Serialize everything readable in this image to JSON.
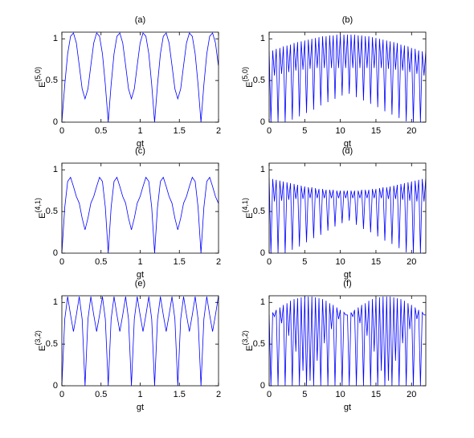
{
  "chart_data": [
    {
      "type": "line",
      "title": "(a)",
      "xlabel": "gt",
      "ylabel": "E",
      "ylabel_sup": "(5,0)",
      "xlim": [
        0,
        2
      ],
      "xticks": [
        0,
        0.5,
        1,
        1.5,
        2
      ],
      "ylim": [
        0,
        1.08
      ],
      "yticks": [
        0,
        0.5,
        1
      ],
      "x": [
        0,
        0.037,
        0.074,
        0.111,
        0.148,
        0.185,
        0.222,
        0.259,
        0.296,
        0.333,
        0.37,
        0.407,
        0.444,
        0.481,
        0.518,
        0.555,
        0.592,
        0.629,
        0.666,
        0.703,
        0.74,
        0.777,
        0.814,
        0.851,
        0.888,
        0.925,
        0.962,
        0.999,
        1.036,
        1.073,
        1.11,
        1.147,
        1.184,
        1.221,
        1.258,
        1.295,
        1.332,
        1.369,
        1.406,
        1.443,
        1.48,
        1.517,
        1.554,
        1.591,
        1.628,
        1.665,
        1.702,
        1.739,
        1.776,
        1.813,
        1.85,
        1.887,
        1.924,
        1.961,
        1.998
      ],
      "series": [
        {
          "color": "#0000ff",
          "values": [
            0,
            0.45,
            0.82,
            1.03,
            1.07,
            0.95,
            0.68,
            0.4,
            0.28,
            0.4,
            0.68,
            0.95,
            1.07,
            1.03,
            0.82,
            0.45,
            0,
            0.45,
            0.82,
            1.03,
            1.07,
            0.95,
            0.68,
            0.4,
            0.28,
            0.4,
            0.68,
            0.95,
            1.07,
            1.03,
            0.82,
            0.45,
            0,
            0.45,
            0.82,
            1.03,
            1.07,
            0.95,
            0.68,
            0.4,
            0.28,
            0.4,
            0.68,
            0.95,
            1.07,
            1.03,
            0.82,
            0.45,
            0,
            0.45,
            0.82,
            1.03,
            1.07,
            0.95,
            0.68
          ]
        }
      ]
    },
    {
      "type": "line",
      "title": "(b)",
      "xlabel": "gt",
      "ylabel": "E",
      "ylabel_sup": "(5,0)",
      "xlim": [
        0,
        22
      ],
      "xticks": [
        0,
        5,
        10,
        15,
        20
      ],
      "ylim": [
        0,
        1.08
      ],
      "yticks": [
        0,
        0.5,
        1
      ],
      "x": [
        0,
        0.25,
        0.5,
        0.75,
        1,
        1.25,
        1.5,
        1.75,
        2,
        2.25,
        2.5,
        2.75,
        3,
        3.25,
        3.5,
        3.75,
        4,
        4.25,
        4.5,
        4.75,
        5,
        5.25,
        5.5,
        5.75,
        6,
        6.25,
        6.5,
        6.75,
        7,
        7.25,
        7.5,
        7.75,
        8,
        8.25,
        8.5,
        8.75,
        9,
        9.25,
        9.5,
        9.75,
        10,
        10.25,
        10.5,
        10.75,
        11,
        11.25,
        11.5,
        11.75,
        12,
        12.25,
        12.5,
        12.75,
        13,
        13.25,
        13.5,
        13.75,
        14,
        14.25,
        14.5,
        14.75,
        15,
        15.25,
        15.5,
        15.75,
        16,
        16.25,
        16.5,
        16.75,
        17,
        17.25,
        17.5,
        17.75,
        18,
        18.25,
        18.5,
        18.75,
        19,
        19.25,
        19.5,
        19.75,
        20,
        20.25,
        20.5,
        20.75,
        21,
        21.25,
        21.5,
        21.75,
        22
      ],
      "series": [
        {
          "color": "#0000ff",
          "values": [
            0.85,
            0,
            0.86,
            0.56,
            0.88,
            0,
            0.89,
            0.58,
            0.91,
            0,
            0.92,
            0.6,
            0.93,
            0.03,
            0.95,
            0.62,
            0.96,
            0.07,
            0.97,
            0.63,
            0.98,
            0.11,
            0.99,
            0.64,
            1.0,
            0.15,
            1.01,
            0.65,
            1.02,
            0.2,
            1.03,
            0.65,
            1.03,
            0.24,
            1.04,
            0.65,
            1.04,
            0.28,
            1.05,
            0.65,
            1.05,
            0.32,
            1.05,
            0.65,
            1.05,
            0.34,
            1.05,
            0.65,
            1.05,
            0.3,
            1.04,
            0.65,
            1.04,
            0.26,
            1.03,
            0.65,
            1.03,
            0.22,
            1.02,
            0.65,
            1.01,
            0.18,
            1.0,
            0.65,
            0.99,
            0.13,
            0.98,
            0.64,
            0.97,
            0.09,
            0.96,
            0.63,
            0.95,
            0.05,
            0.93,
            0.62,
            0.92,
            0.01,
            0.91,
            0.6,
            0.89,
            0,
            0.88,
            0.58,
            0.86,
            0,
            0.85,
            0.56,
            0.85
          ]
        }
      ]
    },
    {
      "type": "line",
      "title": "(c)",
      "xlabel": "gt",
      "ylabel": "E",
      "ylabel_sup": "(4,1)",
      "xlim": [
        0,
        2
      ],
      "xticks": [
        0,
        0.5,
        1,
        1.5,
        2
      ],
      "ylim": [
        0,
        1.08
      ],
      "yticks": [
        0,
        0.5,
        1
      ],
      "x": [
        0,
        0.037,
        0.074,
        0.111,
        0.148,
        0.185,
        0.222,
        0.259,
        0.296,
        0.333,
        0.37,
        0.407,
        0.444,
        0.481,
        0.518,
        0.555,
        0.592,
        0.629,
        0.666,
        0.703,
        0.74,
        0.777,
        0.814,
        0.851,
        0.888,
        0.925,
        0.962,
        0.999,
        1.036,
        1.073,
        1.11,
        1.147,
        1.184,
        1.221,
        1.258,
        1.295,
        1.332,
        1.369,
        1.406,
        1.443,
        1.48,
        1.517,
        1.554,
        1.591,
        1.628,
        1.665,
        1.702,
        1.739,
        1.776,
        1.813,
        1.85,
        1.887,
        1.924,
        1.961,
        1.998
      ],
      "series": [
        {
          "color": "#0000ff",
          "values": [
            0,
            0.55,
            0.86,
            0.91,
            0.8,
            0.68,
            0.6,
            0.42,
            0.28,
            0.42,
            0.6,
            0.68,
            0.8,
            0.91,
            0.86,
            0.55,
            0,
            0.55,
            0.86,
            0.91,
            0.8,
            0.68,
            0.6,
            0.42,
            0.28,
            0.42,
            0.6,
            0.68,
            0.8,
            0.91,
            0.86,
            0.55,
            0,
            0.55,
            0.86,
            0.91,
            0.8,
            0.68,
            0.6,
            0.42,
            0.28,
            0.42,
            0.6,
            0.68,
            0.8,
            0.91,
            0.86,
            0.55,
            0,
            0.55,
            0.86,
            0.91,
            0.8,
            0.68,
            0.6
          ]
        }
      ]
    },
    {
      "type": "line",
      "title": "(d)",
      "xlabel": "gt",
      "ylabel": "E",
      "ylabel_sup": "(4,1)",
      "xlim": [
        0,
        22
      ],
      "xticks": [
        0,
        5,
        10,
        15,
        20
      ],
      "ylim": [
        0,
        1.08
      ],
      "yticks": [
        0,
        0.5,
        1
      ],
      "x": [
        0,
        0.25,
        0.5,
        0.75,
        1,
        1.25,
        1.5,
        1.75,
        2,
        2.25,
        2.5,
        2.75,
        3,
        3.25,
        3.5,
        3.75,
        4,
        4.25,
        4.5,
        4.75,
        5,
        5.25,
        5.5,
        5.75,
        6,
        6.25,
        6.5,
        6.75,
        7,
        7.25,
        7.5,
        7.75,
        8,
        8.25,
        8.5,
        8.75,
        9,
        9.25,
        9.5,
        9.75,
        10,
        10.25,
        10.5,
        10.75,
        11,
        11.25,
        11.5,
        11.75,
        12,
        12.25,
        12.5,
        12.75,
        13,
        13.25,
        13.5,
        13.75,
        14,
        14.25,
        14.5,
        14.75,
        15,
        15.25,
        15.5,
        15.75,
        16,
        16.25,
        16.5,
        16.75,
        17,
        17.25,
        17.5,
        17.75,
        18,
        18.25,
        18.5,
        18.75,
        19,
        19.25,
        19.5,
        19.75,
        20,
        20.25,
        20.5,
        20.75,
        21,
        21.25,
        21.5,
        21.75,
        22
      ],
      "series": [
        {
          "color": "#0000ff",
          "values": [
            0.9,
            0,
            0.89,
            0.62,
            0.88,
            0,
            0.87,
            0.63,
            0.86,
            0,
            0.85,
            0.64,
            0.84,
            0.04,
            0.83,
            0.65,
            0.82,
            0.08,
            0.81,
            0.65,
            0.8,
            0.13,
            0.79,
            0.66,
            0.79,
            0.18,
            0.78,
            0.66,
            0.77,
            0.22,
            0.77,
            0.66,
            0.76,
            0.27,
            0.76,
            0.66,
            0.76,
            0.32,
            0.75,
            0.66,
            0.75,
            0.36,
            0.75,
            0.66,
            0.75,
            0.39,
            0.75,
            0.66,
            0.75,
            0.34,
            0.75,
            0.66,
            0.76,
            0.29,
            0.76,
            0.66,
            0.76,
            0.25,
            0.77,
            0.66,
            0.77,
            0.2,
            0.78,
            0.66,
            0.79,
            0.15,
            0.79,
            0.65,
            0.8,
            0.11,
            0.81,
            0.65,
            0.82,
            0.06,
            0.83,
            0.64,
            0.84,
            0.01,
            0.85,
            0.63,
            0.86,
            0,
            0.87,
            0.62,
            0.88,
            0,
            0.89,
            0.62,
            0.9
          ]
        }
      ]
    },
    {
      "type": "line",
      "title": "(e)",
      "xlabel": "gt",
      "ylabel": "E",
      "ylabel_sup": "(3,2)",
      "xlim": [
        0,
        2
      ],
      "xticks": [
        0,
        0.5,
        1,
        1.5,
        2
      ],
      "ylim": [
        0,
        1.08
      ],
      "yticks": [
        0,
        0.5,
        1
      ],
      "x": [
        0,
        0.037,
        0.074,
        0.111,
        0.148,
        0.185,
        0.222,
        0.259,
        0.296,
        0.333,
        0.37,
        0.407,
        0.444,
        0.481,
        0.518,
        0.555,
        0.592,
        0.629,
        0.666,
        0.703,
        0.74,
        0.777,
        0.814,
        0.851,
        0.888,
        0.925,
        0.962,
        0.999,
        1.036,
        1.073,
        1.11,
        1.147,
        1.184,
        1.221,
        1.258,
        1.295,
        1.332,
        1.369,
        1.406,
        1.443,
        1.48,
        1.517,
        1.554,
        1.591,
        1.628,
        1.665,
        1.702,
        1.739,
        1.776,
        1.813,
        1.85,
        1.887,
        1.924,
        1.961,
        1.998
      ],
      "series": [
        {
          "color": "#0000ff",
          "values": [
            0,
            0.8,
            1.07,
            0.85,
            0.65,
            0.85,
            1.07,
            0.8,
            0,
            0.8,
            1.07,
            0.85,
            0.65,
            0.85,
            1.07,
            0.8,
            0,
            0.8,
            1.07,
            0.85,
            0.65,
            0.85,
            1.07,
            0.8,
            0,
            0.8,
            1.07,
            0.85,
            0.65,
            0.85,
            1.07,
            0.8,
            0,
            0.8,
            1.07,
            0.85,
            0.65,
            0.85,
            1.07,
            0.8,
            0,
            0.8,
            1.07,
            0.85,
            0.65,
            0.85,
            1.07,
            0.8,
            0,
            0.8,
            1.07,
            0.85,
            0.65,
            0.85,
            1.07
          ]
        }
      ]
    },
    {
      "type": "line",
      "title": "(f)",
      "xlabel": "gt",
      "ylabel": "E",
      "ylabel_sup": "(3,2)",
      "xlim": [
        0,
        22
      ],
      "xticks": [
        0,
        5,
        10,
        15,
        20
      ],
      "ylim": [
        0,
        1.08
      ],
      "yticks": [
        0,
        0.5,
        1
      ],
      "x": [
        0,
        0.25,
        0.5,
        0.75,
        1,
        1.25,
        1.5,
        1.75,
        2,
        2.25,
        2.5,
        2.75,
        3,
        3.25,
        3.5,
        3.75,
        4,
        4.25,
        4.5,
        4.75,
        5,
        5.25,
        5.5,
        5.75,
        6,
        6.25,
        6.5,
        6.75,
        7,
        7.25,
        7.5,
        7.75,
        8,
        8.25,
        8.5,
        8.75,
        9,
        9.25,
        9.5,
        9.75,
        10,
        10.25,
        10.5,
        10.75,
        11,
        11.25,
        11.5,
        11.75,
        12,
        12.25,
        12.5,
        12.75,
        13,
        13.25,
        13.5,
        13.75,
        14,
        14.25,
        14.5,
        14.75,
        15,
        15.25,
        15.5,
        15.75,
        16,
        16.25,
        16.5,
        16.75,
        17,
        17.25,
        17.5,
        17.75,
        18,
        18.25,
        18.5,
        18.75,
        19,
        19.25,
        19.5,
        19.75,
        20,
        20.25,
        20.5,
        20.75,
        21,
        21.25,
        21.5,
        21.75,
        22
      ],
      "series": [
        {
          "color": "#0000ff",
          "values": [
            0.85,
            0,
            0.88,
            0.83,
            0.91,
            0,
            0.94,
            0.75,
            0.97,
            0,
            0.99,
            0.6,
            1.02,
            0,
            1.04,
            0.41,
            1.05,
            0,
            1.06,
            0.18,
            1.07,
            0,
            1.07,
            0.06,
            1.07,
            0,
            1.06,
            0.3,
            1.05,
            0,
            1.04,
            0.51,
            1.02,
            0,
            0.99,
            0.68,
            0.97,
            0,
            0.94,
            0.8,
            0.91,
            0,
            0.88,
            0.85,
            0.85,
            0,
            0.88,
            0.83,
            0.91,
            0,
            0.94,
            0.75,
            0.97,
            0,
            0.99,
            0.6,
            1.02,
            0,
            1.04,
            0.41,
            1.05,
            0,
            1.06,
            0.18,
            1.07,
            0,
            1.07,
            0.06,
            1.07,
            0,
            1.06,
            0.3,
            1.05,
            0,
            1.04,
            0.51,
            1.02,
            0,
            0.99,
            0.68,
            0.97,
            0,
            0.94,
            0.8,
            0.91,
            0,
            0.88,
            0.85,
            0.85
          ]
        }
      ]
    }
  ]
}
